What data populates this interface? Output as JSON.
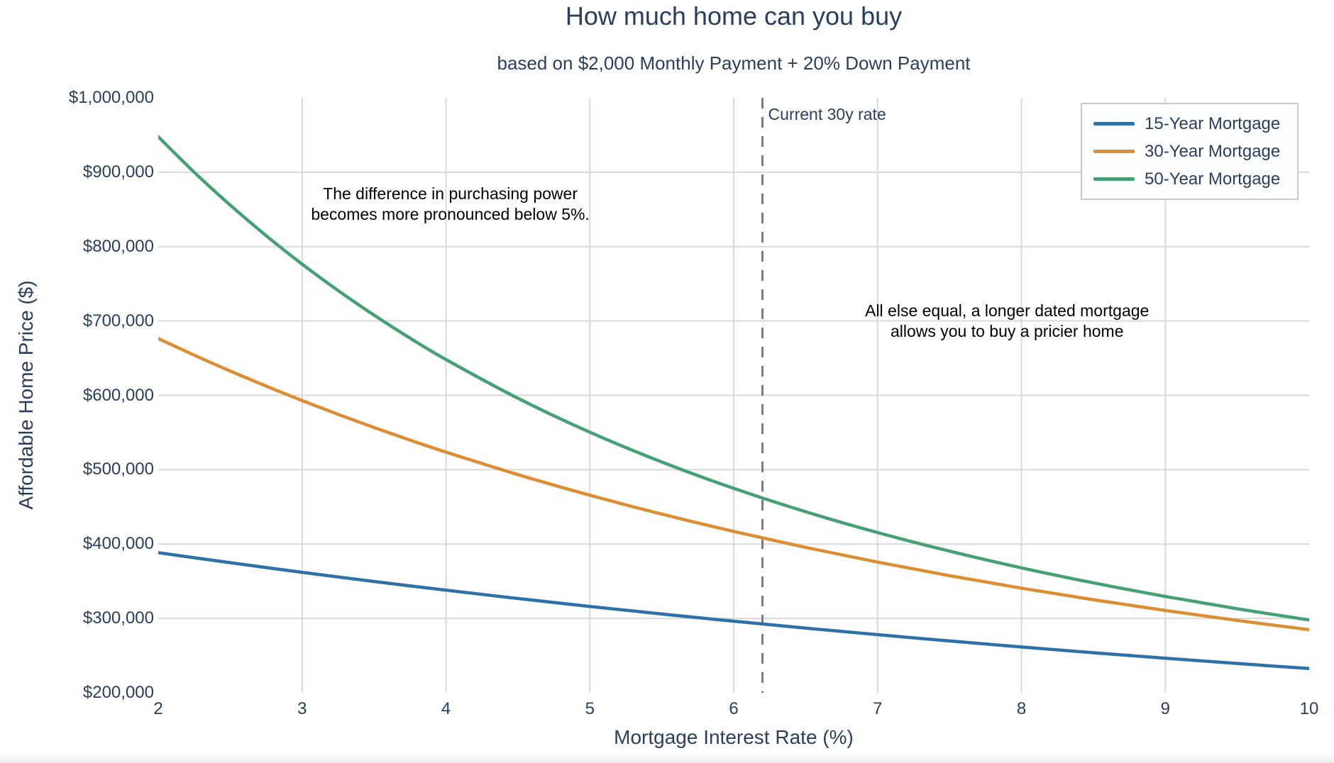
{
  "colors": {
    "font": "#2a3f5f",
    "annotation_text": "#000000",
    "grid": "#d9d9d9",
    "plot_bg": "#ffffff",
    "legend_bg": "#fdfeff",
    "legend_border": "#c9c9c9"
  },
  "chart_data": {
    "type": "line",
    "title": "How much home can you buy",
    "subtitle": "based on $2,000 Monthly Payment + 20% Down Payment",
    "xlabel": "Mortgage Interest Rate (%)",
    "ylabel": "Affordable Home Price ($)",
    "xlim": [
      2,
      10
    ],
    "ylim": [
      200000,
      1000000
    ],
    "grid": true,
    "legend_position": "top-right",
    "x": [
      2,
      2.25,
      2.5,
      2.75,
      3,
      3.25,
      3.5,
      3.75,
      4,
      4.5,
      5,
      5.5,
      6,
      6.5,
      7,
      7.5,
      8,
      8.5,
      9,
      9.5,
      10
    ],
    "series": [
      {
        "name": "15-Year Mortgage",
        "color": "#2e71a9",
        "values": [
          388497,
          381634,
          374944,
          368392,
          362013,
          355790,
          349708,
          343786,
          337983,
          326800,
          316137,
          305968,
          296259,
          286990,
          278140,
          269684,
          261601,
          253875,
          246484,
          239410,
          232643
        ]
      },
      {
        "name": "30-Year Mortgage",
        "color": "#dd8e32",
        "values": [
          676378,
          654036,
          632719,
          612389,
          592974,
          574441,
          556738,
          539822,
          523654,
          493403,
          465703,
          440305,
          416979,
          395525,
          375770,
          357544,
          340709,
          325131,
          310705,
          297318,
          284877
        ]
      },
      {
        "name": "50-Year Mortgage",
        "color": "#45a173",
        "values": [
          947715,
          900006,
          855787,
          814662,
          776451,
          740922,
          707830,
          676961,
          648157,
          596104,
          550480,
          510364,
          474920,
          443485,
          415498,
          390482,
          368040,
          347831,
          329568,
          313007,
          297937
        ]
      }
    ],
    "x_ticks": [
      {
        "value": 2,
        "label": "2"
      },
      {
        "value": 3,
        "label": "3"
      },
      {
        "value": 4,
        "label": "4"
      },
      {
        "value": 5,
        "label": "5"
      },
      {
        "value": 6,
        "label": "6"
      },
      {
        "value": 7,
        "label": "7"
      },
      {
        "value": 8,
        "label": "8"
      },
      {
        "value": 9,
        "label": "9"
      },
      {
        "value": 10,
        "label": "10"
      }
    ],
    "y_ticks": [
      {
        "value": 200000,
        "label": "$200,000"
      },
      {
        "value": 300000,
        "label": "$300,000"
      },
      {
        "value": 400000,
        "label": "$400,000"
      },
      {
        "value": 500000,
        "label": "$500,000"
      },
      {
        "value": 600000,
        "label": "$600,000"
      },
      {
        "value": 700000,
        "label": "$700,000"
      },
      {
        "value": 800000,
        "label": "$800,000"
      },
      {
        "value": 900000,
        "label": "$900,000"
      },
      {
        "value": 1000000,
        "label": "$1,000,000"
      }
    ],
    "vline": {
      "x": 6.2,
      "label": "Current 30y rate",
      "color": "#7b7b7b",
      "style": "dashed"
    },
    "annotations": [
      {
        "lines": [
          "The difference in purchasing power",
          "becomes more pronounced below 5%."
        ],
        "x": 4.03,
        "y": 857000
      },
      {
        "lines": [
          "All else equal, a longer dated mortgage",
          "allows you to buy a pricier home"
        ],
        "x": 7.9,
        "y": 700000
      }
    ]
  }
}
